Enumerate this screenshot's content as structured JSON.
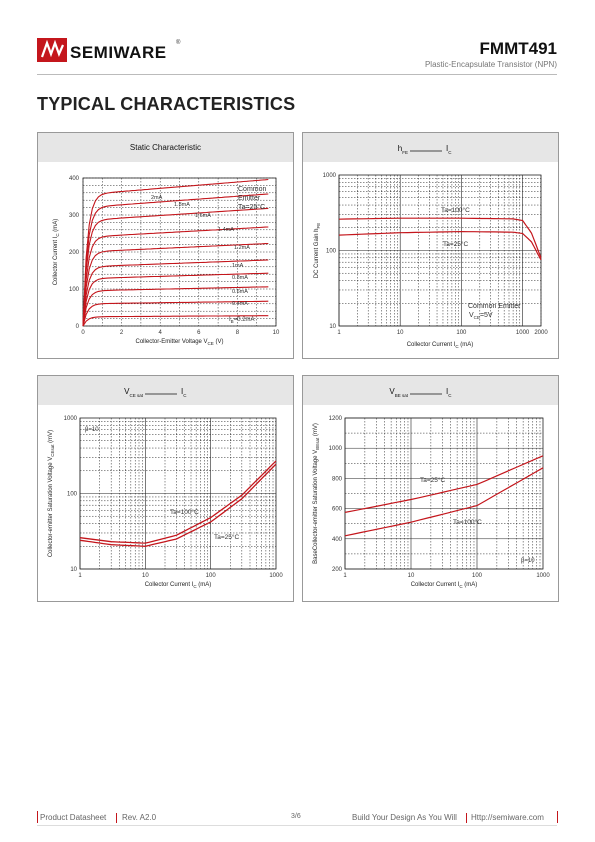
{
  "header": {
    "brand": "SEMIWARE",
    "registered": "®",
    "part_number": "FMMT491",
    "description": "Plastic-Encapsulate Transistor (NPN)"
  },
  "section_title": "TYPICAL CHARACTERISTICS",
  "colors": {
    "curve": "#c4161c",
    "panel_header": "#e6e6e6",
    "accent": "#c4161c"
  },
  "chart_data": [
    {
      "type": "line",
      "title": "Static Characteristic",
      "xlabel": "Collector-Emitter Voltage VCE (V)",
      "ylabel": "Collector Current IC (mA)",
      "xlim": [
        0,
        10
      ],
      "ylim": [
        0,
        400
      ],
      "xticks": [
        "0",
        "2",
        "4",
        "6",
        "8",
        "10"
      ],
      "yticks": [
        "0",
        "100",
        "200",
        "300",
        "400"
      ],
      "legend_text": [
        "Common",
        "Emitter",
        "Ta=25°C"
      ],
      "series": [
        {
          "name": "IB=0.2mA",
          "label": "IB=0.2mA",
          "sat": 25
        },
        {
          "name": "0.4mA",
          "label": "0.4mA",
          "sat": 60
        },
        {
          "name": "0.6mA",
          "label": "0.6mA",
          "sat": 95
        },
        {
          "name": "0.8mA",
          "label": "0.8mA",
          "sat": 128
        },
        {
          "name": "1mA",
          "label": "1mA",
          "sat": 160
        },
        {
          "name": "1.2mA",
          "label": "1.2mA",
          "sat": 200
        },
        {
          "name": "1.4mA",
          "label": "1.4mA",
          "sat": 240
        },
        {
          "name": "1.6mA",
          "label": "1.6mA",
          "sat": 285
        },
        {
          "name": "1.8mA",
          "label": "1.8mA",
          "sat": 320
        },
        {
          "name": "2mA",
          "label": "2mA",
          "sat": 355
        }
      ]
    },
    {
      "type": "line",
      "title": "hFE —— IC",
      "xlabel": "Collector Current IC (mA)",
      "ylabel": "DC Current Gain hFE",
      "xlim": [
        1,
        2000
      ],
      "ylim": [
        10,
        1000
      ],
      "log": true,
      "xticks": [
        "1",
        "10",
        "100",
        "1000",
        "2000"
      ],
      "yticks": [
        "10",
        "100",
        "1000"
      ],
      "annotations": [
        "Common Emitter",
        "VCE=5V"
      ],
      "series": [
        {
          "name": "Ta=100°C",
          "x": [
            1,
            10,
            100,
            700,
            1000,
            1400,
            2000
          ],
          "y": [
            260,
            268,
            268,
            262,
            250,
            170,
            80
          ]
        },
        {
          "name": "Ta=25°C",
          "x": [
            1,
            10,
            100,
            700,
            1000,
            1400,
            2000
          ],
          "y": [
            160,
            172,
            178,
            175,
            168,
            130,
            75
          ]
        }
      ]
    },
    {
      "type": "line",
      "title": "VCEsat —— IC",
      "xlabel": "Collector Current IC (mA)",
      "ylabel": "Collector-emitter Saturation Voltage VCEsat (mV)",
      "xlim": [
        1,
        1000
      ],
      "ylim": [
        10,
        1000
      ],
      "log": true,
      "xticks": [
        "1",
        "10",
        "100",
        "1000"
      ],
      "yticks": [
        "10",
        "100",
        "1000"
      ],
      "annotations": [
        "β=10"
      ],
      "series": [
        {
          "name": "Ta=100°C",
          "x": [
            1,
            3,
            10,
            30,
            100,
            300,
            1000
          ],
          "y": [
            26,
            23,
            22,
            28,
            48,
            95,
            270
          ]
        },
        {
          "name": "Ta=25°C",
          "x": [
            1,
            3,
            10,
            30,
            100,
            300,
            1000
          ],
          "y": [
            24,
            21,
            20,
            25,
            42,
            85,
            245
          ]
        }
      ]
    },
    {
      "type": "line",
      "title": "VBEsat —— IC",
      "xlabel": "Collector Current IC (mA)",
      "ylabel": "BaseCollector-emitter Saturation Voltage VBEsat (mV)",
      "xlim": [
        1,
        1000
      ],
      "ylim": [
        200,
        1200
      ],
      "xticks": [
        "1",
        "10",
        "100",
        "1000"
      ],
      "yticks": [
        "200",
        "400",
        "600",
        "800",
        "1000",
        "1200"
      ],
      "annotations": [
        "β=10"
      ],
      "series": [
        {
          "name": "Ta=25°C",
          "x": [
            1,
            10,
            100,
            1000
          ],
          "y": [
            575,
            660,
            760,
            950
          ]
        },
        {
          "name": "Ta=100°C",
          "x": [
            1,
            10,
            100,
            1000
          ],
          "y": [
            420,
            510,
            620,
            870
          ]
        }
      ]
    }
  ],
  "footer": {
    "doc_type": "Product Datasheet",
    "rev": "Rev. A2.0",
    "page": "3/6",
    "slogan": "Build Your Design As You Will",
    "url": "Http://semiware.com"
  }
}
